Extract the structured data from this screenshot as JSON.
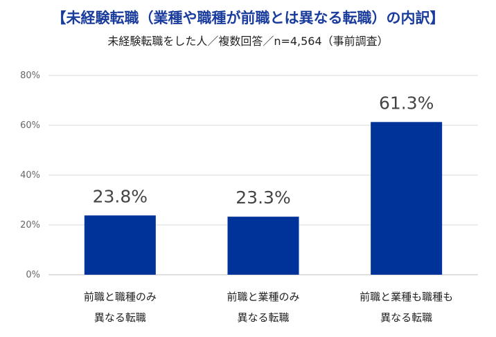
{
  "title": "【未経験転職（業種や職種が前職とは異なる転職）の内訳】",
  "subtitle": "未経験転職をした人／複数回答／n=4,564（事前調査）",
  "chart_data": {
    "type": "bar",
    "categories": [
      [
        "前職と職種のみ",
        "異なる転職"
      ],
      [
        "前職と業種のみ",
        "異なる転職"
      ],
      [
        "前職と業種も職種も",
        "異なる転職"
      ]
    ],
    "values": [
      23.8,
      23.3,
      61.3
    ],
    "value_labels": [
      "23.8%",
      "23.3%",
      "61.3%"
    ],
    "ylim": [
      0,
      80
    ],
    "yticks": [
      0,
      20,
      40,
      60,
      80
    ],
    "ytick_labels": [
      "0%",
      "20%",
      "40%",
      "60%",
      "80%"
    ],
    "grid": true,
    "legend": "none",
    "bar_color": "#003399",
    "grid_color": "#d9d9d9"
  }
}
